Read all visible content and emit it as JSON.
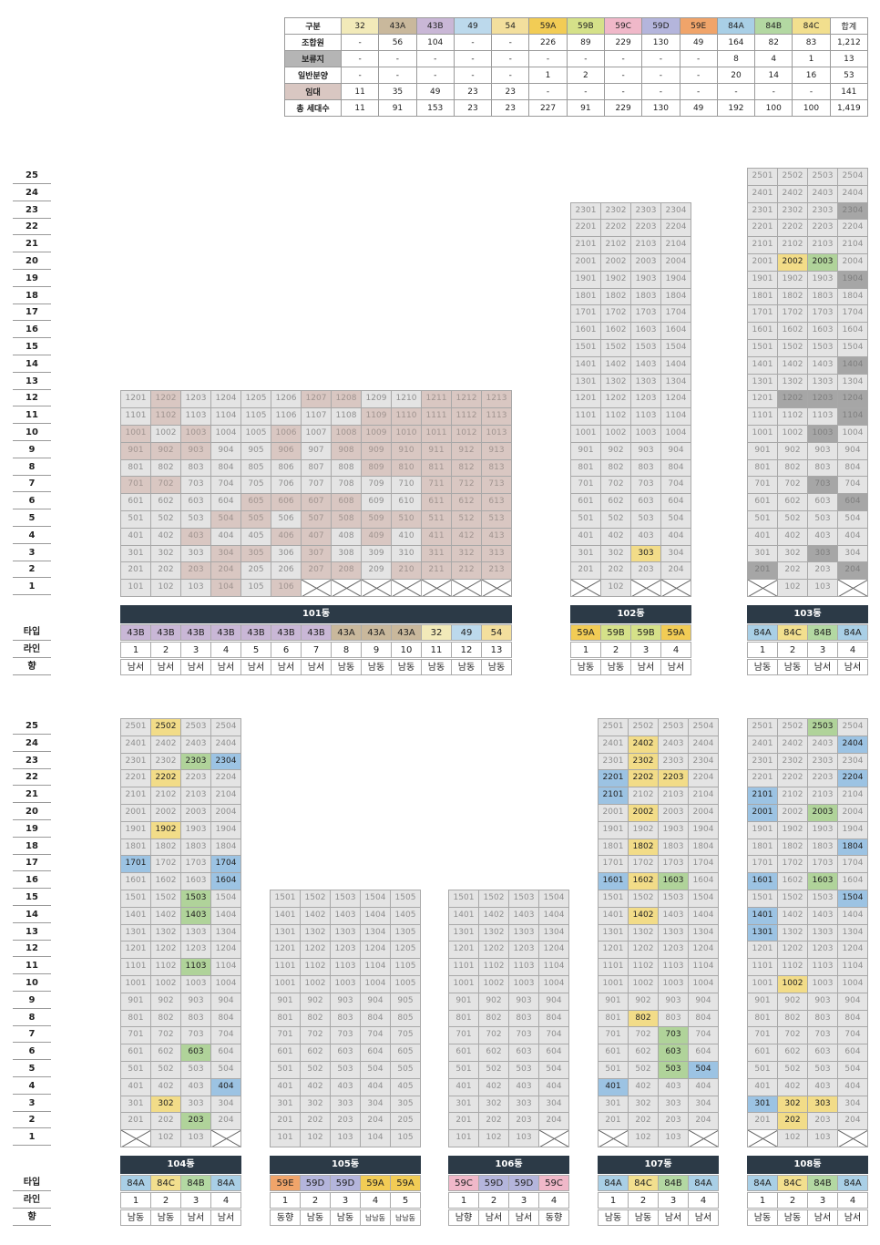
{
  "summary": {
    "header_label": "구분",
    "total_label": "합계",
    "types": [
      "32",
      "43A",
      "43B",
      "49",
      "54",
      "59A",
      "59B",
      "59C",
      "59D",
      "59E",
      "84A",
      "84B",
      "84C"
    ],
    "type_colors": {
      "32": "#f2eab9",
      "43A": "#c9b89c",
      "43B": "#c9b7d6",
      "49": "#bcd9ec",
      "54": "#f3df9d",
      "59A": "#f2cc55",
      "59B": "#d5e189",
      "59C": "#f0b8c9",
      "59D": "#b4b5dc",
      "59E": "#f0a46a",
      "84A": "#a9cfe6",
      "84B": "#b3d8a2",
      "84C": "#f2df8e"
    },
    "rows": [
      {
        "label": "조합원",
        "color": "#ffffff",
        "values": [
          "-",
          "56",
          "104",
          "-",
          "-",
          "226",
          "89",
          "229",
          "130",
          "49",
          "164",
          "82",
          "83"
        ],
        "total": "1,212"
      },
      {
        "label": "보류지",
        "color": "#b5b5b5",
        "values": [
          "-",
          "-",
          "-",
          "-",
          "-",
          "-",
          "-",
          "-",
          "-",
          "-",
          "8",
          "4",
          "1"
        ],
        "total": "13"
      },
      {
        "label": "일반분양",
        "color": "#ffffff",
        "values": [
          "-",
          "-",
          "-",
          "-",
          "-",
          "1",
          "2",
          "-",
          "-",
          "-",
          "20",
          "14",
          "16"
        ],
        "total": "53"
      },
      {
        "label": "임대",
        "color": "#d9c7c2",
        "values": [
          "11",
          "35",
          "49",
          "23",
          "23",
          "-",
          "-",
          "-",
          "-",
          "-",
          "-",
          "-",
          "-"
        ],
        "total": "141"
      },
      {
        "label": "총 세대수",
        "color": "#ffffff",
        "values": [
          "11",
          "91",
          "153",
          "23",
          "23",
          "227",
          "91",
          "229",
          "130",
          "49",
          "192",
          "100",
          "100"
        ],
        "total": "1,419"
      }
    ]
  },
  "row_labels": {
    "type": "타입",
    "line": "라인",
    "direction": "향"
  },
  "floors": [
    "25",
    "24",
    "23",
    "22",
    "21",
    "20",
    "19",
    "18",
    "17",
    "16",
    "15",
    "14",
    "13",
    "12",
    "11",
    "10",
    "9",
    "8",
    "7",
    "6",
    "5",
    "4",
    "3",
    "2",
    "1"
  ],
  "groups": [
    {
      "buildings": [
        {
          "name": "101동",
          "lines": 13,
          "top_floor": 12,
          "types": [
            "43B",
            "43B",
            "43B",
            "43B",
            "43B",
            "43B",
            "43B",
            "43A",
            "43A",
            "43A",
            "32",
            "49",
            "54"
          ],
          "line_nums": [
            "1",
            "2",
            "3",
            "4",
            "5",
            "6",
            "7",
            "8",
            "9",
            "10",
            "11",
            "12",
            "13"
          ],
          "directions": [
            "남서",
            "남서",
            "남서",
            "남서",
            "남서",
            "남서",
            "남서",
            "남동",
            "남동",
            "남동",
            "남동",
            "남동",
            "남동"
          ],
          "rows": [
            "nrnnnnrrnnrrr",
            "nrnnnnnnrrrrr",
            "rnrnnrnrrrrrr",
            "rrrnnrnrrrrrr",
            "nnnnnnnnrrrrr",
            "rrnnnnnnnnrrr",
            "nnnnrrrrnnrrr",
            "nnnrrnrrrrrrr",
            "nnrnnrrnrnrrr",
            "nnnrrnrnnnrrr",
            "nnrrnnrrnrrrr",
            "nnnrnrxxxxxxx"
          ],
          "overrides": {}
        },
        {
          "name": "102동",
          "lines": 4,
          "top_floor": 23,
          "types": [
            "59A",
            "59B",
            "59B",
            "59A"
          ],
          "line_nums": [
            "1",
            "2",
            "3",
            "4"
          ],
          "directions": [
            "남동",
            "남동",
            "남서",
            "남서"
          ],
          "rows": [
            "nnnn",
            "nnnn",
            "nnnn",
            "nnnn",
            "nnnn",
            "nnnn",
            "nnnn",
            "nnnn",
            "nnnn",
            "nnnn",
            "nnnn",
            "nnnn",
            "nnnn",
            "nnnn",
            "nnnn",
            "nnnn",
            "nnnn",
            "nnnn",
            "nnnn",
            "nnnn",
            "nnyn",
            "nnnn",
            "xnxx"
          ],
          "overrides": {}
        },
        {
          "name": "103동",
          "lines": 4,
          "top_floor": 25,
          "types": [
            "84A",
            "84C",
            "84B",
            "84A"
          ],
          "line_nums": [
            "1",
            "2",
            "3",
            "4"
          ],
          "directions": [
            "남동",
            "남동",
            "남서",
            "남서"
          ],
          "rows": [
            "nnnn",
            "nnnn",
            "nnnk",
            "nnnn",
            "nnnn",
            "nyyn",
            "nnnk",
            "nnnn",
            "nnnn",
            "nnnn",
            "nnnn",
            "nnnk",
            "nnnn",
            "nkkk",
            "nnnk",
            "nnkn",
            "nnnn",
            "nnnn",
            "nnkn",
            "nnnk",
            "nnnn",
            "nnnn",
            "nnkn",
            "knnk",
            "xnnx"
          ],
          "overrides": {
            "2002": "y",
            "2003": "g"
          }
        }
      ]
    },
    {
      "buildings": [
        {
          "name": "104동",
          "lines": 4,
          "top_floor": 25,
          "types": [
            "84A",
            "84C",
            "84B",
            "84A"
          ],
          "line_nums": [
            "1",
            "2",
            "3",
            "4"
          ],
          "directions": [
            "남동",
            "남동",
            "남서",
            "남서"
          ],
          "rows": [
            "nynn",
            "nnnn",
            "nngb",
            "nynn",
            "nnnn",
            "nnnn",
            "nynn",
            "nnnn",
            "bnnb",
            "nnnb",
            "nngn",
            "nngn",
            "nnnn",
            "nnnn",
            "nngn",
            "nnnn",
            "nnnn",
            "nnnn",
            "nnnn",
            "nngn",
            "nnnn",
            "nnnb",
            "nynn",
            "nngn",
            "xnnx"
          ],
          "overrides": {}
        },
        {
          "name": "105동",
          "lines": 5,
          "top_floor": 15,
          "types": [
            "59E",
            "59D",
            "59D",
            "59A",
            "59A"
          ],
          "line_nums": [
            "1",
            "2",
            "3",
            "4",
            "5"
          ],
          "directions": [
            "동향",
            "남동",
            "남동",
            "남남동",
            "남남동"
          ],
          "rows": [
            "nnnnn",
            "nnnnn",
            "nnnnn",
            "nnnnn",
            "nnnnn",
            "nnnnn",
            "nnnnn",
            "nnnnn",
            "nnnnn",
            "nnnnn",
            "nnnnn",
            "nnnnn",
            "nnnnn",
            "nnnnn",
            "nnnnn"
          ],
          "overrides": {}
        },
        {
          "name": "106동",
          "lines": 4,
          "top_floor": 15,
          "types": [
            "59C",
            "59D",
            "59D",
            "59C"
          ],
          "line_nums": [
            "1",
            "2",
            "3",
            "4"
          ],
          "directions": [
            "남향",
            "남서",
            "남서",
            "동향"
          ],
          "rows": [
            "nnnn",
            "nnnn",
            "nnnn",
            "nnnn",
            "nnnn",
            "nnnn",
            "nnnn",
            "nnnn",
            "nnnn",
            "nnnn",
            "nnnn",
            "nnnn",
            "nnnn",
            "nnnn",
            "nnnx"
          ],
          "overrides": {}
        },
        {
          "name": "107동",
          "lines": 4,
          "top_floor": 25,
          "types": [
            "84A",
            "84C",
            "84B",
            "84A"
          ],
          "line_nums": [
            "1",
            "2",
            "3",
            "4"
          ],
          "directions": [
            "남동",
            "남동",
            "남서",
            "남서"
          ],
          "rows": [
            "nnnn",
            "nynn",
            "nynn",
            "byyn",
            "bnnn",
            "nynn",
            "nnnn",
            "nynn",
            "nnnn",
            "byyn",
            "nnnn",
            "nynn",
            "nnnn",
            "nnnn",
            "nnnn",
            "nnnn",
            "nnnn",
            "nynn",
            "nngn",
            "nngn",
            "nngb",
            "bnnn",
            "nnnn",
            "nnnn",
            "xnnx"
          ],
          "overrides": {
            "1603": "g",
            "2202": "y"
          }
        },
        {
          "name": "108동",
          "lines": 4,
          "top_floor": 25,
          "types": [
            "84A",
            "84C",
            "84B",
            "84A"
          ],
          "line_nums": [
            "1",
            "2",
            "3",
            "4"
          ],
          "directions": [
            "남동",
            "남동",
            "남서",
            "남서"
          ],
          "rows": [
            "nngn",
            "nnnb",
            "nnnn",
            "nnnb",
            "bnnn",
            "bngn",
            "nnnn",
            "nnnb",
            "nnnn",
            "bngn",
            "nnnb",
            "bnnn",
            "bnnn",
            "nnnn",
            "nnnn",
            "nynn",
            "nnnn",
            "nnnn",
            "nnnn",
            "nnnn",
            "nnnn",
            "nnnn",
            "byyn",
            "nynn",
            "xnnx"
          ],
          "overrides": {}
        }
      ]
    }
  ]
}
